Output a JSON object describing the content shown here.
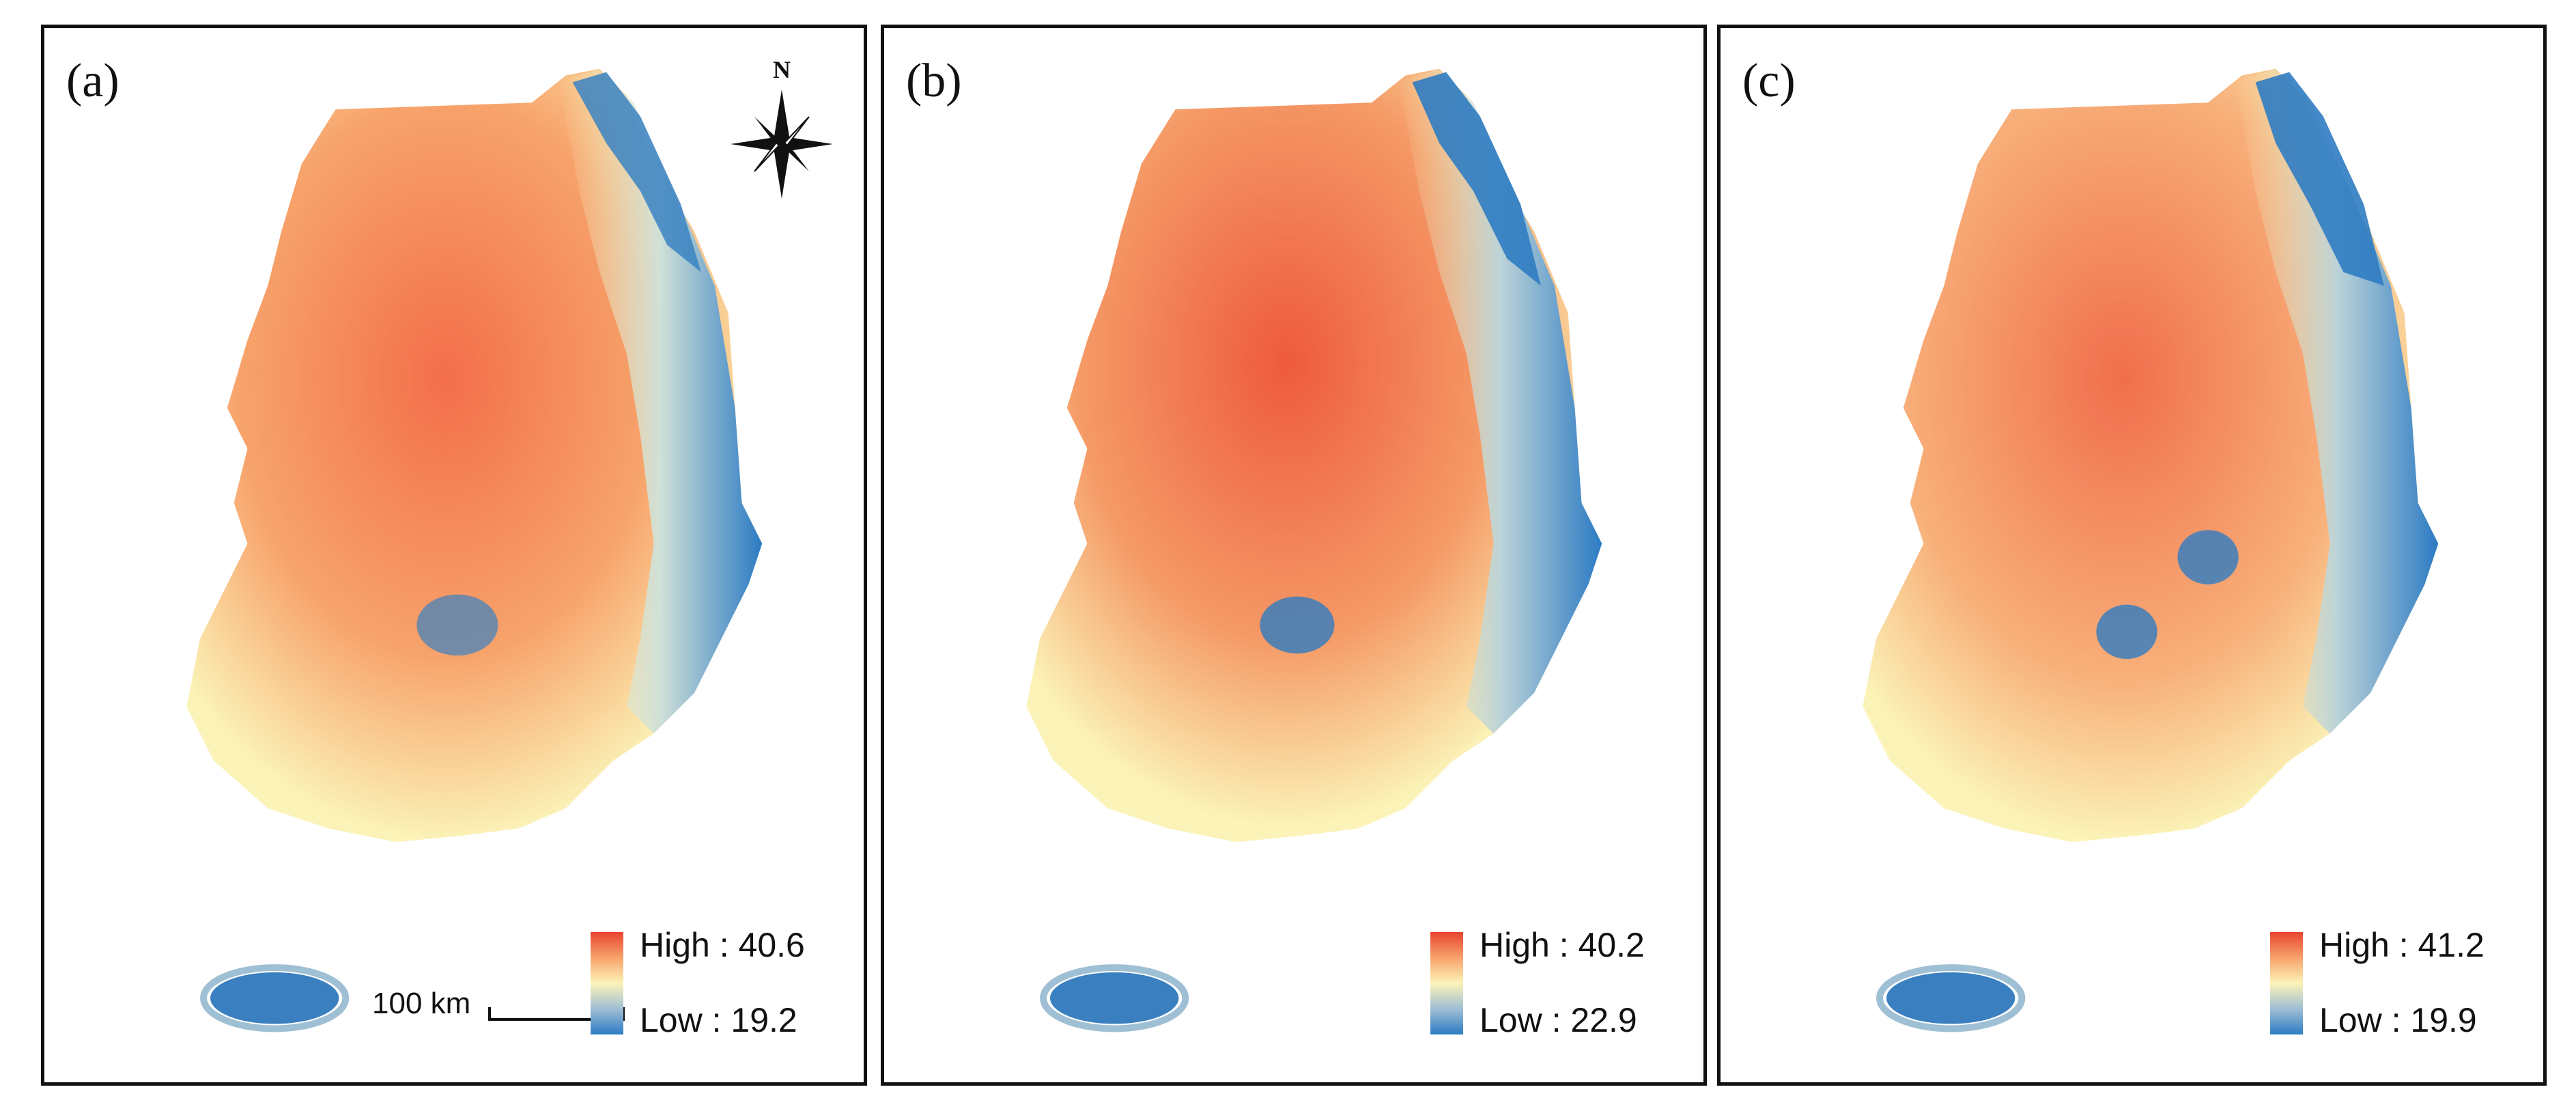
{
  "figure": {
    "panels": [
      {
        "label": "(a)",
        "high_label": "High : 40.6",
        "low_label": "Low : 19.2",
        "high": 40.6,
        "low": 19.2
      },
      {
        "label": "(b)",
        "high_label": "High : 40.2",
        "low_label": "Low : 22.9",
        "high": 40.2,
        "low": 22.9
      },
      {
        "label": "(c)",
        "high_label": "High : 41.2",
        "low_label": "Low : 19.9",
        "high": 41.2,
        "low": 19.9
      }
    ],
    "north_label": "N",
    "scale_label": "100 km",
    "colors": {
      "high": "#e8442f",
      "mid_high": "#f7a36b",
      "mid": "#fbf3b8",
      "mid_low": "#9fbfd4",
      "low": "#2c7bc4"
    }
  }
}
